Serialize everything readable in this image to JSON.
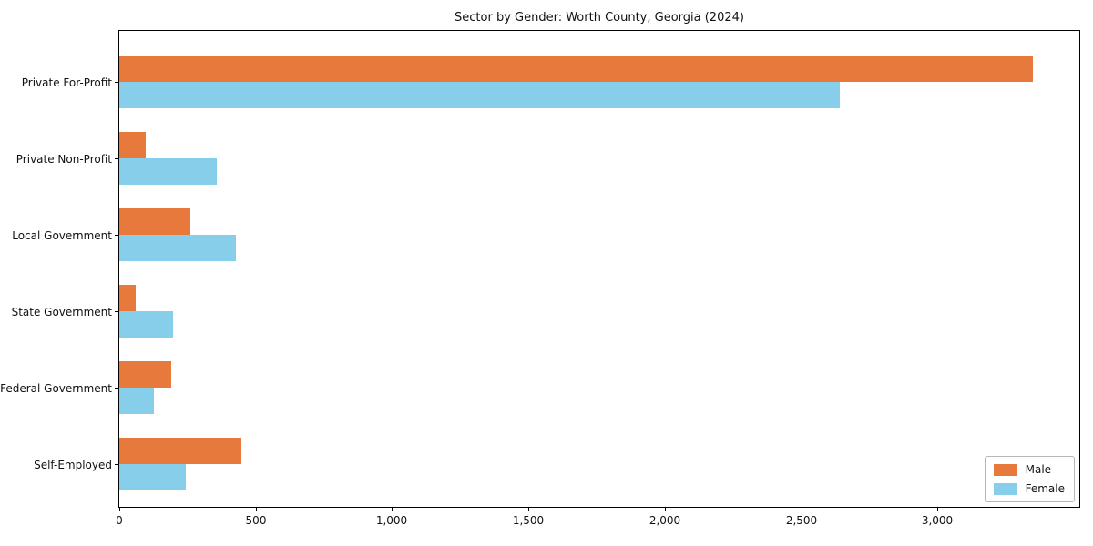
{
  "title": "Sector by Gender: Worth County, Georgia (2024)",
  "chart_data": {
    "type": "bar",
    "orientation": "horizontal",
    "title": "Sector by Gender: Worth County, Georgia (2024)",
    "xlabel": "",
    "ylabel": "",
    "grid": false,
    "legend_position": "lower right",
    "categories": [
      "Private For-Profit",
      "Private Non-Profit",
      "Local Government",
      "State Government",
      "Federal Government",
      "Self-Employed"
    ],
    "series": [
      {
        "name": "Male",
        "color": "#e8793d",
        "values": [
          3350,
          97,
          260,
          59,
          191,
          447
        ]
      },
      {
        "name": "Female",
        "color": "#87ceeb",
        "values": [
          2640,
          358,
          428,
          197,
          127,
          243
        ]
      }
    ],
    "xlim": [
      0,
      3520
    ],
    "x_ticks": [
      {
        "value": 0,
        "label": "0"
      },
      {
        "value": 500,
        "label": "500"
      },
      {
        "value": 1000,
        "label": "1,000"
      },
      {
        "value": 1500,
        "label": "1,500"
      },
      {
        "value": 2000,
        "label": "2,000"
      },
      {
        "value": 2500,
        "label": "2,500"
      },
      {
        "value": 3000,
        "label": "3,000"
      }
    ]
  }
}
